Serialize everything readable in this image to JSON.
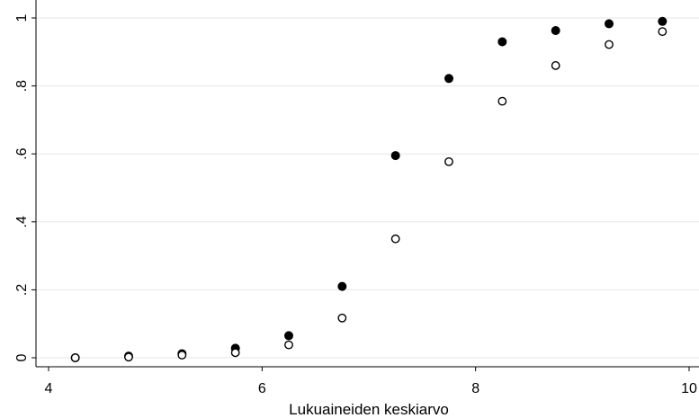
{
  "chart_data": {
    "type": "scatter",
    "title": "",
    "xlabel": "Lukuaineiden keskiarvo",
    "ylabel": "",
    "xlim": [
      4,
      10
    ],
    "ylim": [
      0,
      1
    ],
    "x_ticks": [
      {
        "value": 4,
        "label": "4"
      },
      {
        "value": 6,
        "label": "6"
      },
      {
        "value": 8,
        "label": "8"
      },
      {
        "value": 10,
        "label": "10"
      }
    ],
    "y_ticks": [
      {
        "value": 0,
        "label": "0"
      },
      {
        "value": 0.2,
        "label": ".2"
      },
      {
        "value": 0.4,
        "label": ".4"
      },
      {
        "value": 0.6,
        "label": ".6"
      },
      {
        "value": 0.8,
        "label": ".8"
      },
      {
        "value": 1,
        "label": "1"
      }
    ],
    "grid": "horizontal",
    "legend": "none",
    "series": [
      {
        "marker": "filled-circle",
        "color": "#000000",
        "x": [
          4.25,
          4.75,
          5.25,
          5.75,
          6.25,
          6.75,
          7.25,
          7.75,
          8.25,
          8.75,
          9.25,
          9.75
        ],
        "y": [
          0.0,
          0.005,
          0.012,
          0.028,
          0.065,
          0.21,
          0.595,
          0.822,
          0.93,
          0.963,
          0.983,
          0.99
        ]
      },
      {
        "marker": "hollow-circle",
        "color": "#000000",
        "x": [
          4.25,
          4.75,
          5.25,
          5.75,
          6.25,
          6.75,
          7.25,
          7.75,
          8.25,
          8.75,
          9.25,
          9.75
        ],
        "y": [
          0.0,
          0.002,
          0.008,
          0.015,
          0.038,
          0.117,
          0.35,
          0.577,
          0.755,
          0.86,
          0.922,
          0.96
        ]
      }
    ]
  }
}
